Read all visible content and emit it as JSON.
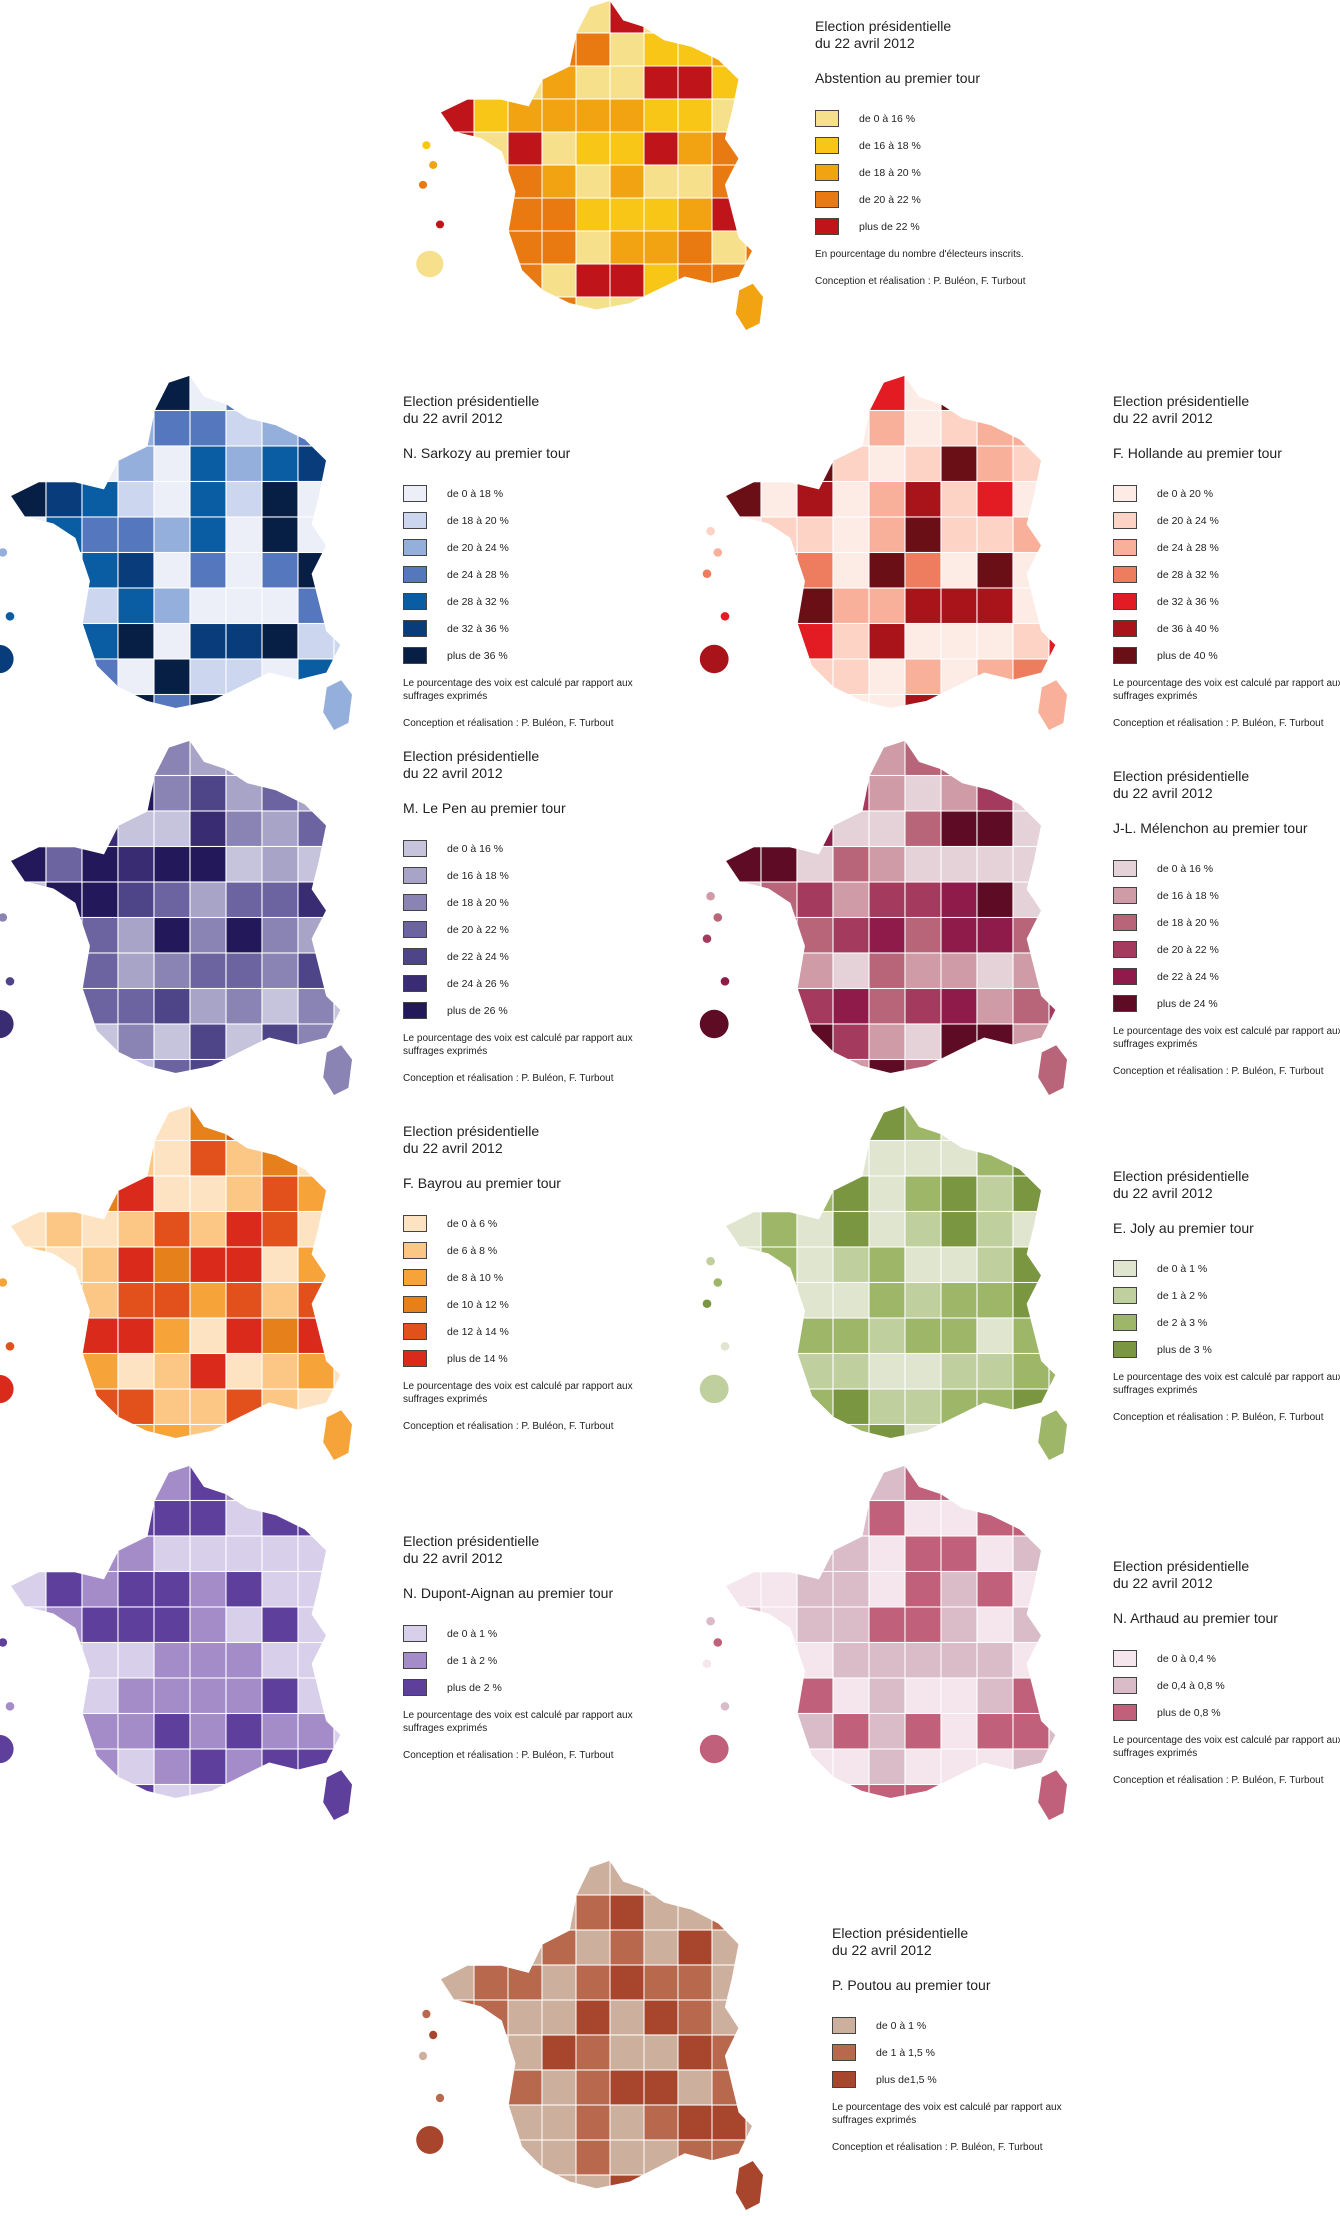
{
  "common": {
    "title_line1": "Election présidentielle",
    "title_line2": "du 22 avril 2012",
    "credit": "Conception et réalisation : P. Buléon, F. Turbout",
    "note_voix": "Le pourcentage des voix est calculé par rapport aux suffrages exprimés"
  },
  "maps": [
    {
      "id": "abstention",
      "subtitle": "Abstention au premier tour",
      "note": "En pourcentage du nombre d'électeurs inscrits.",
      "classes": [
        {
          "label": "de 0 à 16 %",
          "color": "#f6e08c"
        },
        {
          "label": "de 16 à 18 %",
          "color": "#f8c617"
        },
        {
          "label": "de 18 à 20 %",
          "color": "#f1a311"
        },
        {
          "label": "de 20 à 22 %",
          "color": "#e87a11"
        },
        {
          "label": "plus de 22 %",
          "color": "#c0141b"
        }
      ]
    },
    {
      "id": "sarkozy",
      "subtitle": "N. Sarkozy au premier tour",
      "classes": [
        {
          "label": "de 0 à 18 %",
          "color": "#eceef8"
        },
        {
          "label": "de 18 à 20 %",
          "color": "#ccd7ef"
        },
        {
          "label": "de 20 à 24 %",
          "color": "#94afdc"
        },
        {
          "label": "de 24 à 28 %",
          "color": "#5577bd"
        },
        {
          "label": "de 28 à 32 %",
          "color": "#0a5ca3"
        },
        {
          "label": "de 32 à 36 %",
          "color": "#093c7a"
        },
        {
          "label": "plus de 36 %",
          "color": "#081f45"
        }
      ]
    },
    {
      "id": "hollande",
      "subtitle": "F. Hollande au premier tour",
      "classes": [
        {
          "label": "de 0 à 20 %",
          "color": "#fdece6"
        },
        {
          "label": "de 20 à 24 %",
          "color": "#fcd3c4"
        },
        {
          "label": "de 24 à 28 %",
          "color": "#f8b09a"
        },
        {
          "label": "de 28 à 32 %",
          "color": "#ee7c5e"
        },
        {
          "label": "de 32 à 36 %",
          "color": "#e31c23"
        },
        {
          "label": "de 36 à 40 %",
          "color": "#a81419"
        },
        {
          "label": "plus de 40 %",
          "color": "#6b0f17"
        }
      ]
    },
    {
      "id": "lepen",
      "subtitle": "M. Le Pen au premier tour",
      "classes": [
        {
          "label": "de 0 à 16 %",
          "color": "#c6c4dc"
        },
        {
          "label": "de 16 à 18 %",
          "color": "#a8a4c8"
        },
        {
          "label": "de 18 à 20 %",
          "color": "#8a84b4"
        },
        {
          "label": "de 20 à 22 %",
          "color": "#6c64a0"
        },
        {
          "label": "de 22 à 24 %",
          "color": "#4e4488"
        },
        {
          "label": "de 24 à 26 %",
          "color": "#3a2c72"
        },
        {
          "label": "plus de 26 %",
          "color": "#23185a"
        }
      ]
    },
    {
      "id": "melenchon",
      "subtitle": "J-L. Mélenchon au premier tour",
      "classes": [
        {
          "label": "de 0 à 16 %",
          "color": "#e5d2d9"
        },
        {
          "label": "de 16 à 18 %",
          "color": "#cf9ba7"
        },
        {
          "label": "de 18 à 20 %",
          "color": "#b86579"
        },
        {
          "label": "de 20 à 22 %",
          "color": "#a43b5f"
        },
        {
          "label": "de 22 à 24 %",
          "color": "#8e1b4a"
        },
        {
          "label": "plus de 24 %",
          "color": "#5e0c26"
        }
      ]
    },
    {
      "id": "bayrou",
      "subtitle": "F. Bayrou au premier tour",
      "classes": [
        {
          "label": "de 0 à  6 %",
          "color": "#fde3c2"
        },
        {
          "label": "de 6 à 8 %",
          "color": "#fcc784"
        },
        {
          "label": "de 8 à 10 %",
          "color": "#f6a43a"
        },
        {
          "label": "de 10 à 12 %",
          "color": "#e6801a"
        },
        {
          "label": "de 12 à 14 %",
          "color": "#e2501b"
        },
        {
          "label": "plus de 14 %",
          "color": "#d92a1c"
        }
      ]
    },
    {
      "id": "joly",
      "subtitle": "E. Joly au premier tour",
      "classes": [
        {
          "label": "de 0 à  1 %",
          "color": "#dfe5cf"
        },
        {
          "label": "de 1 à 2 %",
          "color": "#bfcf9e"
        },
        {
          "label": "de 2 à 3 %",
          "color": "#9db668"
        },
        {
          "label": "plus de 3 %",
          "color": "#7a9640"
        }
      ]
    },
    {
      "id": "dupontaignan",
      "subtitle": "N. Dupont-Aignan au premier tour",
      "classes": [
        {
          "label": "de 0 à  1 %",
          "color": "#d8d0ea"
        },
        {
          "label": "de 1 à 2 %",
          "color": "#a48cc8"
        },
        {
          "label": "plus de 2 %",
          "color": "#5e3f9c"
        }
      ]
    },
    {
      "id": "arthaud",
      "subtitle": "N. Arthaud au premier tour",
      "classes": [
        {
          "label": "de 0 à  0,4 %",
          "color": "#f4e6ec"
        },
        {
          "label": "de 0,4 à 0,8 %",
          "color": "#d9bcc8"
        },
        {
          "label": "plus de 0,8 %",
          "color": "#c0607a"
        }
      ]
    },
    {
      "id": "poutou",
      "subtitle": "P. Poutou au premier tour",
      "classes": [
        {
          "label": "de 0 à  1 %",
          "color": "#cdaf9e"
        },
        {
          "label": "de 1 à 1,5 %",
          "color": "#b8684c"
        },
        {
          "label": "plus de1,5 %",
          "color": "#a8452d"
        }
      ]
    }
  ]
}
